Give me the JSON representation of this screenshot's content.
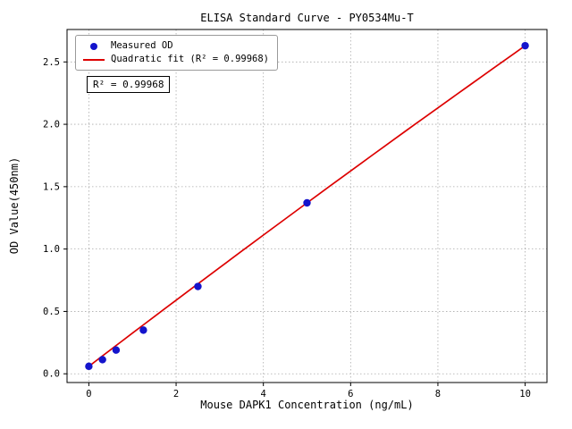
{
  "chart_data": {
    "type": "scatter",
    "title": "ELISA Standard Curve - PY0534Mu-T",
    "xlabel": "Mouse DAPK1 Concentration (ng/mL)",
    "ylabel": "OD Value(450nm)",
    "xlim": [
      -0.5,
      10.5
    ],
    "ylim": [
      -0.07,
      2.76
    ],
    "xticks": [
      0,
      2,
      4,
      6,
      8,
      10
    ],
    "xtick_labels": [
      "0",
      "2",
      "4",
      "6",
      "8",
      "10"
    ],
    "yticks": [
      0.0,
      0.5,
      1.0,
      1.5,
      2.0,
      2.5
    ],
    "ytick_labels": [
      "0.0",
      "0.5",
      "1.0",
      "1.5",
      "2.0",
      "2.5"
    ],
    "grid": true,
    "grid_color": "#aaaaaa",
    "point_color": "#1414cc",
    "line_color": "#dd0000",
    "legend": [
      "Measured OD",
      "Quadratic fit (R² = 0.99968)"
    ],
    "annotation": "R² = 0.99968",
    "series": [
      {
        "name": "Measured OD",
        "type": "scatter",
        "points": [
          [
            0,
            0.06
          ],
          [
            0.3125,
            0.113
          ],
          [
            0.625,
            0.19
          ],
          [
            1.25,
            0.35
          ],
          [
            2.5,
            0.7
          ],
          [
            5,
            1.37
          ],
          [
            10,
            2.63
          ]
        ]
      },
      {
        "name": "Quadratic fit",
        "type": "line",
        "fit": {
          "a": -0.001,
          "b": 0.267,
          "c": 0.06,
          "x_start": 0,
          "x_end": 10
        }
      }
    ]
  }
}
